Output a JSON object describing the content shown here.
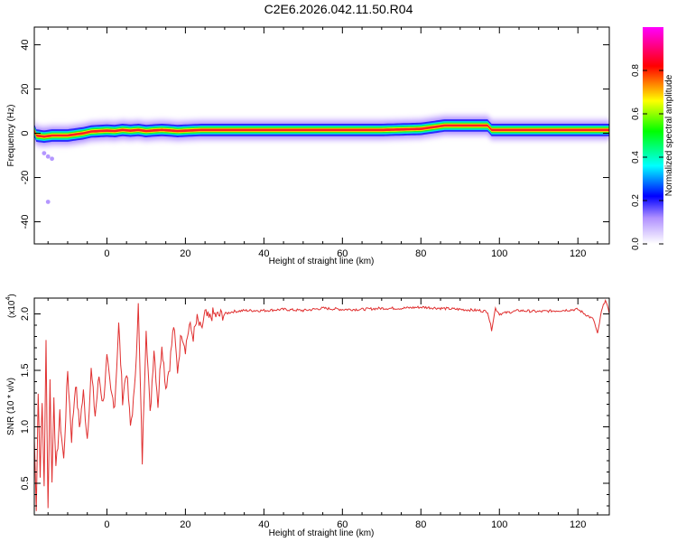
{
  "title": "C2E6.2026.042.11.50.R04",
  "chart_data": [
    {
      "type": "heatmap",
      "xlabel": "Height of straight line (km)",
      "ylabel": "Frequency (Hz)",
      "xlim": [
        -18.5,
        128
      ],
      "ylim": [
        -50,
        48
      ],
      "x_ticks": [
        0,
        20,
        40,
        60,
        80,
        100,
        120
      ],
      "y_ticks": [
        -40,
        -20,
        0,
        20,
        40
      ],
      "colorbar": {
        "label": "Normalized spectral amplitude",
        "range": [
          0,
          1
        ],
        "ticks": [
          0.0,
          0.2,
          0.4,
          0.6,
          0.8
        ],
        "colors": [
          "#ffffff",
          "#0000ff",
          "#00ffff",
          "#00ff00",
          "#ffff00",
          "#ff0000",
          "#ff00ff"
        ]
      },
      "ridge": {
        "x": [
          -18,
          -16,
          -14,
          -12,
          -10,
          -8,
          -6,
          -4,
          -2,
          0,
          2,
          4,
          6,
          8,
          10,
          12,
          14,
          16,
          18,
          20,
          24,
          30,
          40,
          50,
          60,
          70,
          80,
          84,
          86,
          90,
          95,
          97,
          98,
          100,
          110,
          120,
          128
        ],
        "freq_hz": [
          -1,
          -1.5,
          -1,
          -1,
          -1,
          -0.5,
          0,
          0.8,
          1,
          1.2,
          1,
          1.5,
          1.2,
          1.5,
          1,
          1.3,
          1.5,
          1.3,
          1,
          1.2,
          1.5,
          1.5,
          1.5,
          1.5,
          1.5,
          1.5,
          2,
          3,
          3.5,
          3.5,
          3.5,
          3.5,
          1.5,
          1.5,
          1.5,
          1.5,
          1.5
        ]
      },
      "stray_points": [
        {
          "x": -16,
          "freq_hz": -9
        },
        {
          "x": -15,
          "freq_hz": -10.5
        },
        {
          "x": -14,
          "freq_hz": -11.5
        },
        {
          "x": -15,
          "freq_hz": -31
        }
      ]
    },
    {
      "type": "line",
      "xlabel": "Height of straight line (km)",
      "ylabel": "SNR (10 * v/v)",
      "y_scale_label": "(x10",
      "y_scale_exp": "4",
      "xlim": [
        -18.5,
        128
      ],
      "ylim": [
        0.22,
        2.14
      ],
      "x_ticks": [
        0,
        20,
        40,
        60,
        80,
        100,
        120
      ],
      "y_ticks": [
        0.5,
        1.0,
        1.5,
        2.0
      ],
      "y_tick_labels": [
        "0.5",
        "1.0",
        "1.5",
        "2.0"
      ],
      "color": "#e03030",
      "x": [
        -18.5,
        -18,
        -17.5,
        -17,
        -16.5,
        -16,
        -15.5,
        -15,
        -14.5,
        -14,
        -13.5,
        -13,
        -12,
        -11,
        -10,
        -9,
        -8,
        -7,
        -6,
        -5,
        -4,
        -3,
        -2,
        -1,
        0,
        1,
        2,
        3,
        4,
        5,
        6,
        7,
        8,
        9,
        10,
        11,
        12,
        13,
        14,
        15,
        16,
        17,
        18,
        19,
        20,
        21,
        22,
        23,
        24,
        25,
        26,
        27,
        28,
        30,
        32,
        35,
        40,
        45,
        50,
        55,
        60,
        65,
        70,
        75,
        80,
        85,
        90,
        95,
        97,
        98,
        99,
        100,
        105,
        110,
        115,
        120,
        124,
        125,
        126,
        127,
        128
      ],
      "y": [
        0.9,
        0.3,
        1.3,
        0.6,
        1.2,
        0.5,
        1.75,
        0.28,
        1.4,
        0.5,
        1.3,
        0.6,
        1.1,
        0.7,
        1.5,
        0.9,
        1.4,
        1.0,
        1.3,
        0.9,
        1.5,
        1.1,
        1.45,
        1.2,
        1.6,
        1.3,
        1.2,
        1.9,
        1.25,
        1.5,
        1.0,
        1.3,
        2.07,
        0.7,
        1.9,
        1.1,
        1.7,
        1.2,
        1.75,
        1.35,
        1.55,
        1.9,
        1.5,
        1.85,
        1.7,
        1.9,
        1.8,
        1.95,
        1.85,
        2.0,
        1.95,
        2.0,
        1.98,
        2.0,
        2.02,
        2.03,
        2.03,
        2.04,
        2.03,
        2.05,
        2.04,
        2.04,
        2.05,
        2.05,
        2.06,
        2.05,
        2.04,
        2.03,
        2.02,
        1.86,
        2.05,
        2.0,
        2.03,
        2.02,
        2.03,
        2.04,
        1.95,
        1.82,
        2.02,
        2.13,
        2.0
      ]
    }
  ]
}
